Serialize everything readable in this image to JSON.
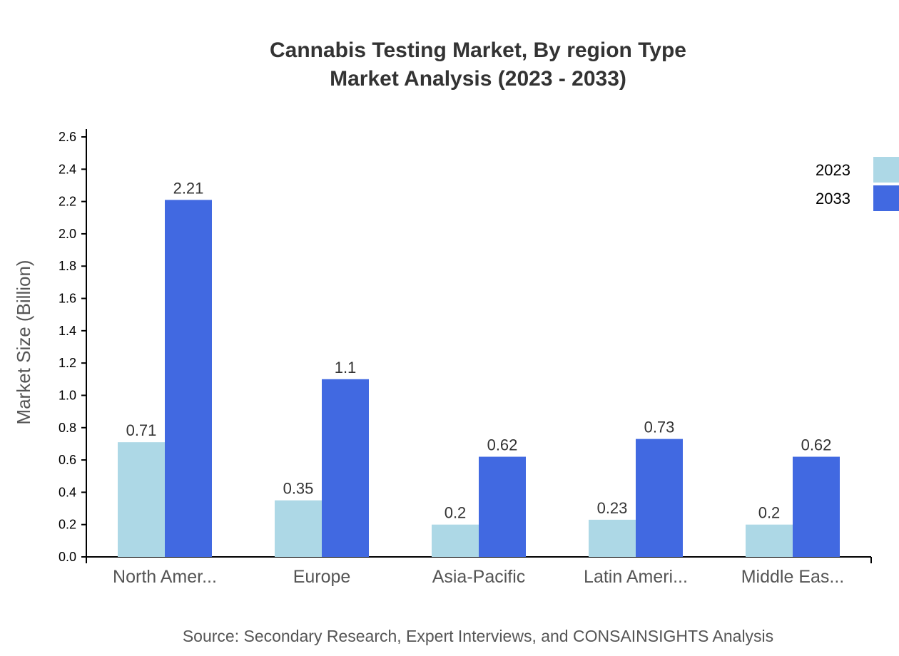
{
  "chart_data": {
    "type": "bar",
    "title": "Cannabis Testing Market, By region Type",
    "subtitle": "Market Analysis (2023 - 2033)",
    "ylabel": "Market Size (Billion)",
    "xlabel": "",
    "ylim": [
      0,
      2.6
    ],
    "yticks": [
      "0.0",
      "0.2",
      "0.4",
      "0.6",
      "0.8",
      "1.0",
      "1.2",
      "1.4",
      "1.6",
      "1.8",
      "2.0",
      "2.2",
      "2.4",
      "2.6"
    ],
    "categories": [
      "North Amer...",
      "Europe",
      "Asia-Pacific",
      "Latin Ameri...",
      "Middle Eas..."
    ],
    "series": [
      {
        "name": "2023",
        "color": "#add8e6",
        "values": [
          0.71,
          0.35,
          0.2,
          0.23,
          0.2
        ],
        "labels": [
          "0.71",
          "0.35",
          "0.2",
          "0.23",
          "0.2"
        ]
      },
      {
        "name": "2033",
        "color": "#4169e1",
        "values": [
          2.21,
          1.1,
          0.62,
          0.73,
          0.62
        ],
        "labels": [
          "2.21",
          "1.1",
          "0.62",
          "0.73",
          "0.62"
        ]
      }
    ],
    "legend": "top-right",
    "grid": false,
    "source": "Source: Secondary Research, Expert Interviews, and CONSAINSIGHTS Analysis"
  }
}
